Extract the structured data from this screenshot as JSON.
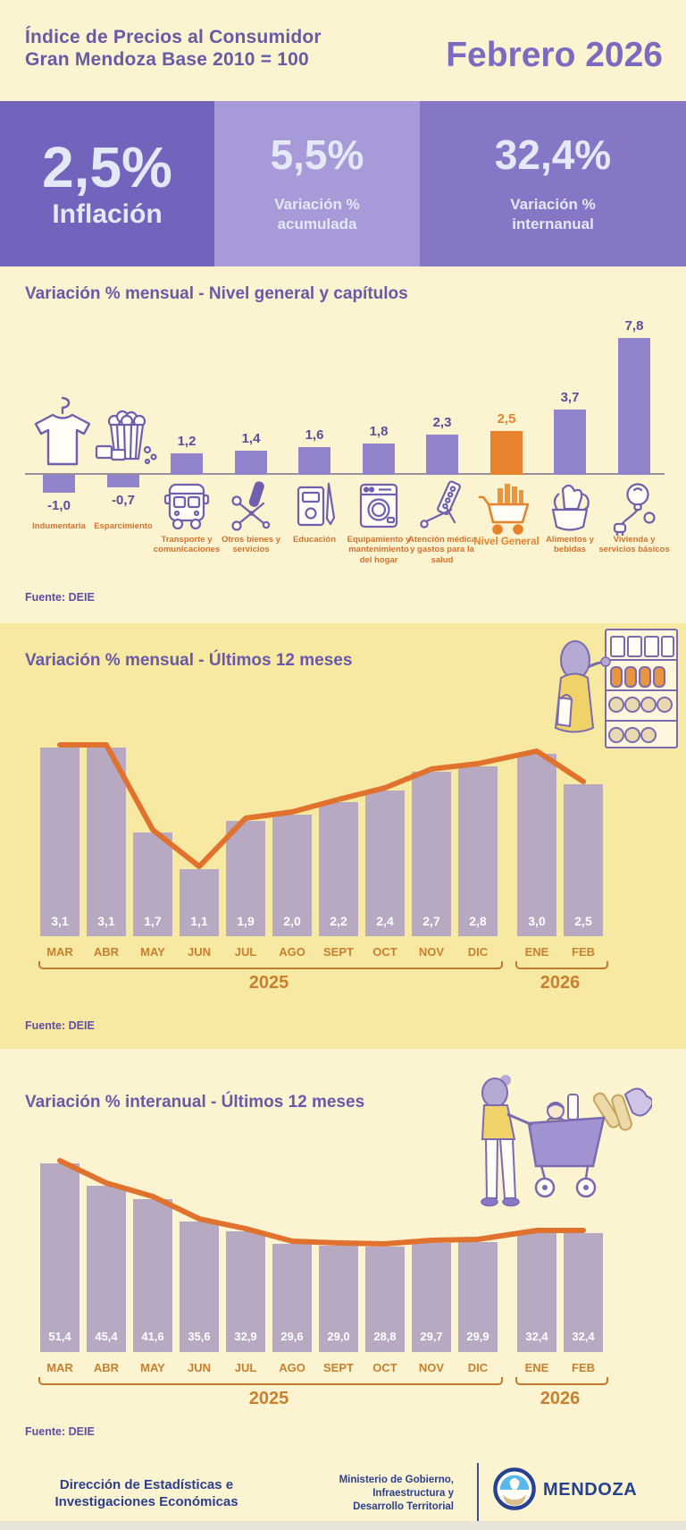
{
  "header": {
    "title_line1": "Índice de Precios al Consumidor",
    "title_line2": "Gran Mendoza Base 2010 = 100",
    "period": "Febrero 2026"
  },
  "stats": [
    {
      "value": "2,5%",
      "label": "Inflación"
    },
    {
      "value": "5,5%",
      "label_line1": "Variación %",
      "label_line2": "acumulada"
    },
    {
      "value": "32,4%",
      "label_line1": "Variación %",
      "label_line2": "internanual"
    }
  ],
  "colors": {
    "accent_orange": "#e8832d",
    "line_orange": "#e0722e",
    "bar_purple": "#9184ca",
    "bar_mauve": "#b6a9c1",
    "label_orange": "#c6802f",
    "title_purple": "#6a58a8",
    "box1": "#7263bc",
    "box2": "#a89ad8",
    "box3": "#8577c6"
  },
  "chart_data": [
    {
      "id": "capitulos",
      "type": "bar",
      "title": "Variación % mensual - Nivel general y capítulos",
      "categories": [
        "Indumentaria",
        "Esparcimiento",
        "Transporte y comunicaciones",
        "Otros bienes y servicios",
        "Educación",
        "Equipamiento y mantenimiento del hogar",
        "Atención médica y gastos para la salud",
        "Nivel General",
        "Alimentos y bebidas",
        "Vivienda y servicios básicos"
      ],
      "values": [
        -1.0,
        -0.7,
        1.2,
        1.4,
        1.6,
        1.8,
        2.3,
        2.5,
        3.7,
        7.8
      ],
      "value_labels": [
        "-1,0",
        "-0,7",
        "1,2",
        "1,4",
        "1,6",
        "1,8",
        "2,3",
        "2,5",
        "3,7",
        "7,8"
      ],
      "icons": [
        "tshirt",
        "popcorn",
        "bus",
        "scissors",
        "book",
        "washer",
        "pills",
        "cart",
        "food",
        "bulb"
      ],
      "highlight_index": 7,
      "ylim": [
        -1.5,
        8.5
      ],
      "grid": false,
      "source": "Fuente: DEIE"
    },
    {
      "id": "mensual-12-meses",
      "type": "bar-line",
      "title": "Variación % mensual - Últimos 12 meses",
      "categories": [
        "MAR",
        "ABR",
        "MAY",
        "JUN",
        "JUL",
        "AGO",
        "SEPT",
        "OCT",
        "NOV",
        "DIC",
        "ENE",
        "FEB"
      ],
      "values": [
        3.1,
        3.1,
        1.7,
        1.1,
        1.9,
        2.0,
        2.2,
        2.4,
        2.7,
        2.8,
        3.0,
        2.5
      ],
      "value_labels": [
        "3,1",
        "3,1",
        "1,7",
        "1,1",
        "1,9",
        "2,0",
        "2,2",
        "2,4",
        "2,7",
        "2,8",
        "3,0",
        "2,5"
      ],
      "year_groups": [
        {
          "label": "2025",
          "from": 0,
          "to": 9
        },
        {
          "label": "2026",
          "from": 10,
          "to": 11
        }
      ],
      "ylim": [
        0,
        3.5
      ],
      "grid": false,
      "source": "Fuente: DEIE"
    },
    {
      "id": "interanual-12-meses",
      "type": "bar-line",
      "title": "Variación % interanual - Últimos 12 meses",
      "categories": [
        "MAR",
        "ABR",
        "MAY",
        "JUN",
        "JUL",
        "AGO",
        "SEPT",
        "OCT",
        "NOV",
        "DIC",
        "ENE",
        "FEB"
      ],
      "values": [
        51.4,
        45.4,
        41.6,
        35.6,
        32.9,
        29.6,
        29.0,
        28.8,
        29.7,
        29.9,
        32.4,
        32.4
      ],
      "value_labels": [
        "51,4",
        "45,4",
        "41,6",
        "35,6",
        "32,9",
        "29,6",
        "29,0",
        "28,8",
        "29,7",
        "29,9",
        "32,4",
        "32,4"
      ],
      "year_groups": [
        {
          "label": "2025",
          "from": 0,
          "to": 9
        },
        {
          "label": "2026",
          "from": 10,
          "to": 11
        }
      ],
      "ylim": [
        0,
        55
      ],
      "grid": false,
      "source": "Fuente: DEIE"
    }
  ],
  "footer": {
    "left_line1": "Dirección de Estadísticas e",
    "left_line2": "Investigaciones Económicas",
    "center_line1": "Ministerio de Gobierno,",
    "center_line2": "Infraestructura y",
    "center_line3": "Desarrollo Territorial",
    "logo_text": "MENDOZA"
  }
}
